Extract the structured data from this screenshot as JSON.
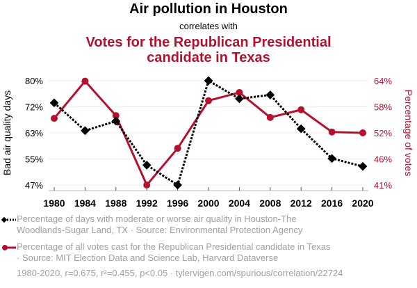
{
  "header": {
    "title": "Air pollution in Houston",
    "subtitle": "correlates with",
    "title2_line1": "Votes for the Republican Presidential",
    "title2_line2": "candidate in Texas"
  },
  "colors": {
    "series1": "#000000",
    "series2": "#b5112e",
    "legend_text": "#a0a0a0",
    "grid": "#eeeeee"
  },
  "chart_data": {
    "type": "line",
    "x": [
      1980,
      1984,
      1988,
      1992,
      1996,
      2000,
      2004,
      2008,
      2012,
      2016,
      2020
    ],
    "xticks": [
      "1980",
      "1984",
      "1988",
      "1992",
      "1996",
      "2000",
      "2004",
      "2008",
      "2012",
      "2016",
      "2020"
    ],
    "left_axis": {
      "label": "Bad air quality days",
      "ticks": [
        "80%",
        "72%",
        "63%",
        "55%",
        "47%"
      ],
      "tick_values": [
        80,
        72,
        63,
        55,
        47
      ],
      "range": [
        47,
        80
      ]
    },
    "right_axis": {
      "label": "Percentage of votes",
      "ticks": [
        "64%",
        "58%",
        "52%",
        "46%",
        "41%"
      ],
      "tick_values": [
        64,
        58,
        52,
        46,
        41
      ],
      "range": [
        41,
        64
      ]
    },
    "grid": true,
    "series": [
      {
        "name": "Percentage of days with moderate or worse air quality in Houston-The Woodlands-Sugar Land, TX · Source: Environmental Protection Agency",
        "axis": "left",
        "style": "dotted",
        "marker": "diamond",
        "values": [
          73.0,
          64.2,
          67.2,
          53.3,
          47.0,
          80.0,
          74.3,
          75.5,
          64.8,
          55.4,
          52.9
        ]
      },
      {
        "name": "Percentage of all votes cast for the Republican Presidential candidate in Texas · Source: MIT Election Data and Science Lab, Harvard Dataverse",
        "axis": "right",
        "style": "solid",
        "marker": "circle",
        "values": [
          55.7,
          63.9,
          56.3,
          41.0,
          49.1,
          59.6,
          61.4,
          55.9,
          57.6,
          52.7,
          52.5
        ]
      }
    ]
  },
  "legend": {
    "item1_line1": "Percentage of days with moderate or worse air quality in Houston-The",
    "item1_line2": "Woodlands-Sugar Land, TX · Source: Environmental Protection Agency",
    "item2_line1": "Percentage of all votes cast for the Republican Presidential candidate in Texas",
    "item2_line2": "· Source: MIT Election Data and Science Lab, Harvard Dataverse"
  },
  "footer": "1980-2020, r=0.675, r²=0.455, p<0.05 · tylervigen.com/spurious/correlation/22724"
}
